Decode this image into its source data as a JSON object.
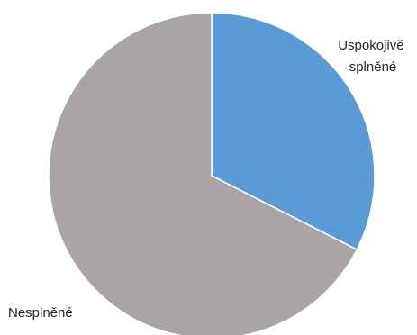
{
  "chart_data": {
    "type": "pie",
    "slices": [
      {
        "label_lines": [
          "Uspokojivě",
          "splněné"
        ],
        "value": 32.5,
        "color": "#5b9bd5"
      },
      {
        "label_lines": [
          "Nesplněné"
        ],
        "value": 67.5,
        "color": "#a9a5a5"
      }
    ],
    "start_angle": "12 o'clock",
    "direction": "clockwise",
    "legend": "none"
  }
}
